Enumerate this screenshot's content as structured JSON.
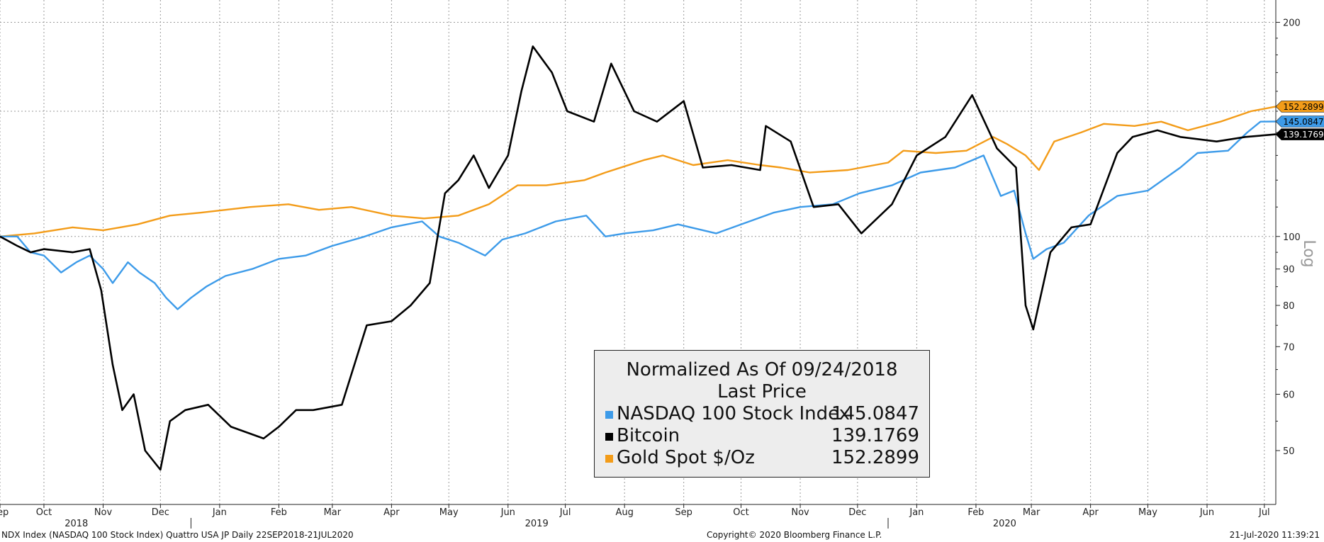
{
  "chart_data": {
    "type": "line",
    "title": "",
    "xlabel": "",
    "ylabel": "Log",
    "y_scale": "log",
    "ylim": [
      42,
      215
    ],
    "xlim": [
      "2018-09-22",
      "2020-07-21"
    ],
    "grid": true,
    "y_ticks": [
      50,
      60,
      70,
      80,
      90,
      100,
      200
    ],
    "y_major_gridlines": [
      100,
      150,
      200
    ],
    "month_ticks": [
      {
        "label": "Sep",
        "date": "2018-09-22"
      },
      {
        "label": "Oct",
        "date": "2018-10-15"
      },
      {
        "label": "Nov",
        "date": "2018-11-15"
      },
      {
        "label": "Dec",
        "date": "2018-12-15"
      },
      {
        "label": "Jan",
        "date": "2019-01-15"
      },
      {
        "label": "Feb",
        "date": "2019-02-15"
      },
      {
        "label": "Mar",
        "date": "2019-03-15"
      },
      {
        "label": "Apr",
        "date": "2019-04-15"
      },
      {
        "label": "May",
        "date": "2019-05-15"
      },
      {
        "label": "Jun",
        "date": "2019-06-15"
      },
      {
        "label": "Jul",
        "date": "2019-07-15"
      },
      {
        "label": "Aug",
        "date": "2019-08-15"
      },
      {
        "label": "Sep",
        "date": "2019-09-15"
      },
      {
        "label": "Oct",
        "date": "2019-10-15"
      },
      {
        "label": "Nov",
        "date": "2019-11-15"
      },
      {
        "label": "Dec",
        "date": "2019-12-15"
      },
      {
        "label": "Jan",
        "date": "2020-01-15"
      },
      {
        "label": "Feb",
        "date": "2020-02-15"
      },
      {
        "label": "Mar",
        "date": "2020-03-15"
      },
      {
        "label": "Apr",
        "date": "2020-04-15"
      },
      {
        "label": "May",
        "date": "2020-05-15"
      },
      {
        "label": "Jun",
        "date": "2020-06-15"
      },
      {
        "label": "Jul",
        "date": "2020-07-15"
      }
    ],
    "year_ticks": [
      {
        "label": "2018",
        "date": "2018-11-01"
      },
      {
        "label": "2019",
        "date": "2019-06-30"
      },
      {
        "label": "2020",
        "date": "2020-03-01"
      }
    ],
    "year_separators": [
      "2018-12-31",
      "2019-12-31"
    ],
    "series": [
      {
        "name": "NASDAQ 100 Stock Index",
        "color": "#3d9be9",
        "last": "145.0847",
        "points": [
          [
            "2018-09-22",
            100
          ],
          [
            "2018-10-01",
            100
          ],
          [
            "2018-10-08",
            95
          ],
          [
            "2018-10-15",
            94
          ],
          [
            "2018-10-24",
            89
          ],
          [
            "2018-11-01",
            92
          ],
          [
            "2018-11-08",
            94
          ],
          [
            "2018-11-15",
            90
          ],
          [
            "2018-11-20",
            86
          ],
          [
            "2018-11-28",
            92
          ],
          [
            "2018-12-04",
            89
          ],
          [
            "2018-12-12",
            86
          ],
          [
            "2018-12-18",
            82
          ],
          [
            "2018-12-24",
            79
          ],
          [
            "2018-12-31",
            82
          ],
          [
            "2019-01-08",
            85
          ],
          [
            "2019-01-18",
            88
          ],
          [
            "2019-02-01",
            90
          ],
          [
            "2019-02-15",
            93
          ],
          [
            "2019-03-01",
            94
          ],
          [
            "2019-03-15",
            97
          ],
          [
            "2019-04-01",
            100
          ],
          [
            "2019-04-15",
            103
          ],
          [
            "2019-05-01",
            105
          ],
          [
            "2019-05-10",
            100
          ],
          [
            "2019-05-20",
            98
          ],
          [
            "2019-06-03",
            94
          ],
          [
            "2019-06-12",
            99
          ],
          [
            "2019-06-24",
            101
          ],
          [
            "2019-07-10",
            105
          ],
          [
            "2019-07-26",
            107
          ],
          [
            "2019-08-05",
            100
          ],
          [
            "2019-08-15",
            101
          ],
          [
            "2019-08-30",
            102
          ],
          [
            "2019-09-12",
            104
          ],
          [
            "2019-10-02",
            101
          ],
          [
            "2019-10-15",
            104
          ],
          [
            "2019-11-01",
            108
          ],
          [
            "2019-11-15",
            110
          ],
          [
            "2019-12-02",
            111
          ],
          [
            "2019-12-16",
            115
          ],
          [
            "2020-01-02",
            118
          ],
          [
            "2020-01-17",
            123
          ],
          [
            "2020-02-04",
            125
          ],
          [
            "2020-02-19",
            130
          ],
          [
            "2020-02-28",
            114
          ],
          [
            "2020-03-06",
            116
          ],
          [
            "2020-03-12",
            101
          ],
          [
            "2020-03-16",
            93
          ],
          [
            "2020-03-23",
            96
          ],
          [
            "2020-04-01",
            98
          ],
          [
            "2020-04-14",
            107
          ],
          [
            "2020-04-29",
            114
          ],
          [
            "2020-05-15",
            116
          ],
          [
            "2020-06-01",
            125
          ],
          [
            "2020-06-10",
            131
          ],
          [
            "2020-06-26",
            132
          ],
          [
            "2020-07-06",
            140
          ],
          [
            "2020-07-13",
            145
          ],
          [
            "2020-07-21",
            145.0847
          ]
        ]
      },
      {
        "name": "Bitcoin",
        "color": "#000000",
        "last": "139.1769",
        "points": [
          [
            "2018-09-22",
            100
          ],
          [
            "2018-10-01",
            97
          ],
          [
            "2018-10-08",
            95
          ],
          [
            "2018-10-15",
            96
          ],
          [
            "2018-10-30",
            95
          ],
          [
            "2018-11-08",
            96
          ],
          [
            "2018-11-14",
            84
          ],
          [
            "2018-11-20",
            66
          ],
          [
            "2018-11-25",
            57
          ],
          [
            "2018-12-01",
            60
          ],
          [
            "2018-12-07",
            50
          ],
          [
            "2018-12-15",
            47
          ],
          [
            "2018-12-20",
            55
          ],
          [
            "2018-12-28",
            57
          ],
          [
            "2019-01-09",
            58
          ],
          [
            "2019-01-21",
            54
          ],
          [
            "2019-02-07",
            52
          ],
          [
            "2019-02-15",
            54
          ],
          [
            "2019-02-24",
            57
          ],
          [
            "2019-03-05",
            57
          ],
          [
            "2019-03-20",
            58
          ],
          [
            "2019-04-02",
            75
          ],
          [
            "2019-04-15",
            76
          ],
          [
            "2019-04-25",
            80
          ],
          [
            "2019-05-05",
            86
          ],
          [
            "2019-05-13",
            115
          ],
          [
            "2019-05-20",
            120
          ],
          [
            "2019-05-28",
            130
          ],
          [
            "2019-06-05",
            117
          ],
          [
            "2019-06-15",
            130
          ],
          [
            "2019-06-22",
            160
          ],
          [
            "2019-06-28",
            185
          ],
          [
            "2019-07-08",
            170
          ],
          [
            "2019-07-16",
            150
          ],
          [
            "2019-07-30",
            145
          ],
          [
            "2019-08-08",
            175
          ],
          [
            "2019-08-20",
            150
          ],
          [
            "2019-09-01",
            145
          ],
          [
            "2019-09-15",
            155
          ],
          [
            "2019-09-25",
            125
          ],
          [
            "2019-10-10",
            126
          ],
          [
            "2019-10-25",
            124
          ],
          [
            "2019-10-28",
            143
          ],
          [
            "2019-11-10",
            136
          ],
          [
            "2019-11-22",
            110
          ],
          [
            "2019-12-05",
            111
          ],
          [
            "2019-12-17",
            101
          ],
          [
            "2020-01-02",
            111
          ],
          [
            "2020-01-15",
            130
          ],
          [
            "2020-01-30",
            138
          ],
          [
            "2020-02-13",
            158
          ],
          [
            "2020-02-26",
            133
          ],
          [
            "2020-03-07",
            125
          ],
          [
            "2020-03-12",
            80
          ],
          [
            "2020-03-16",
            74
          ],
          [
            "2020-03-25",
            95
          ],
          [
            "2020-04-05",
            103
          ],
          [
            "2020-04-15",
            104
          ],
          [
            "2020-04-29,",
            131
          ],
          [
            "2020-05-07",
            138
          ],
          [
            "2020-05-20",
            141
          ],
          [
            "2020-06-01",
            138
          ],
          [
            "2020-06-20",
            136
          ],
          [
            "2020-07-05",
            138
          ],
          [
            "2020-07-21",
            139.1769
          ]
        ]
      },
      {
        "name": "Gold Spot $/Oz",
        "color": "#f39c19",
        "last": "152.2899",
        "points": [
          [
            "2018-09-22",
            100
          ],
          [
            "2018-10-10",
            101
          ],
          [
            "2018-10-30",
            103
          ],
          [
            "2018-11-15",
            102
          ],
          [
            "2018-12-03",
            104
          ],
          [
            "2018-12-20",
            107
          ],
          [
            "2019-01-05",
            108
          ],
          [
            "2019-01-31",
            110
          ],
          [
            "2019-02-20",
            111
          ],
          [
            "2019-03-08",
            109
          ],
          [
            "2019-03-25",
            110
          ],
          [
            "2019-04-15",
            107
          ],
          [
            "2019-05-02",
            106
          ],
          [
            "2019-05-20",
            107
          ],
          [
            "2019-06-05",
            111
          ],
          [
            "2019-06-20",
            118
          ],
          [
            "2019-07-05",
            118
          ],
          [
            "2019-07-25",
            120
          ],
          [
            "2019-08-05",
            123
          ],
          [
            "2019-08-25",
            128
          ],
          [
            "2019-09-04",
            130
          ],
          [
            "2019-09-20",
            126
          ],
          [
            "2019-10-08",
            128
          ],
          [
            "2019-10-25",
            126
          ],
          [
            "2019-11-05",
            125
          ],
          [
            "2019-11-20",
            123
          ],
          [
            "2019-12-10",
            124
          ],
          [
            "2019-12-31",
            127
          ],
          [
            "2020-01-08",
            132
          ],
          [
            "2020-01-25",
            131
          ],
          [
            "2020-02-10",
            132
          ],
          [
            "2020-02-24",
            138
          ],
          [
            "2020-03-02",
            135
          ],
          [
            "2020-03-12",
            130
          ],
          [
            "2020-03-19",
            124
          ],
          [
            "2020-03-27",
            136
          ],
          [
            "2020-04-10",
            140
          ],
          [
            "2020-04-22",
            144
          ],
          [
            "2020-05-08",
            143
          ],
          [
            "2020-05-22",
            145
          ],
          [
            "2020-06-05",
            141
          ],
          [
            "2020-06-22",
            145
          ],
          [
            "2020-07-08",
            150
          ],
          [
            "2020-07-21",
            152.2899
          ]
        ]
      }
    ]
  },
  "legend": {
    "title_line1": "Normalized As Of 09/24/2018",
    "title_line2": "Last Price",
    "items": [
      {
        "name": "NASDAQ 100 Stock Index",
        "value": "145.0847"
      },
      {
        "name": "Bitcoin",
        "value": "139.1769"
      },
      {
        "name": "Gold Spot $/Oz",
        "value": "152.2899"
      }
    ]
  },
  "footer": {
    "left": "NDX Index (NASDAQ 100 Stock Index) Quattro USA JP  Daily 22SEP2018-21JUL2020",
    "center": "Copyright© 2020 Bloomberg Finance L.P.",
    "right": "21-Jul-2020 11:39:21"
  }
}
